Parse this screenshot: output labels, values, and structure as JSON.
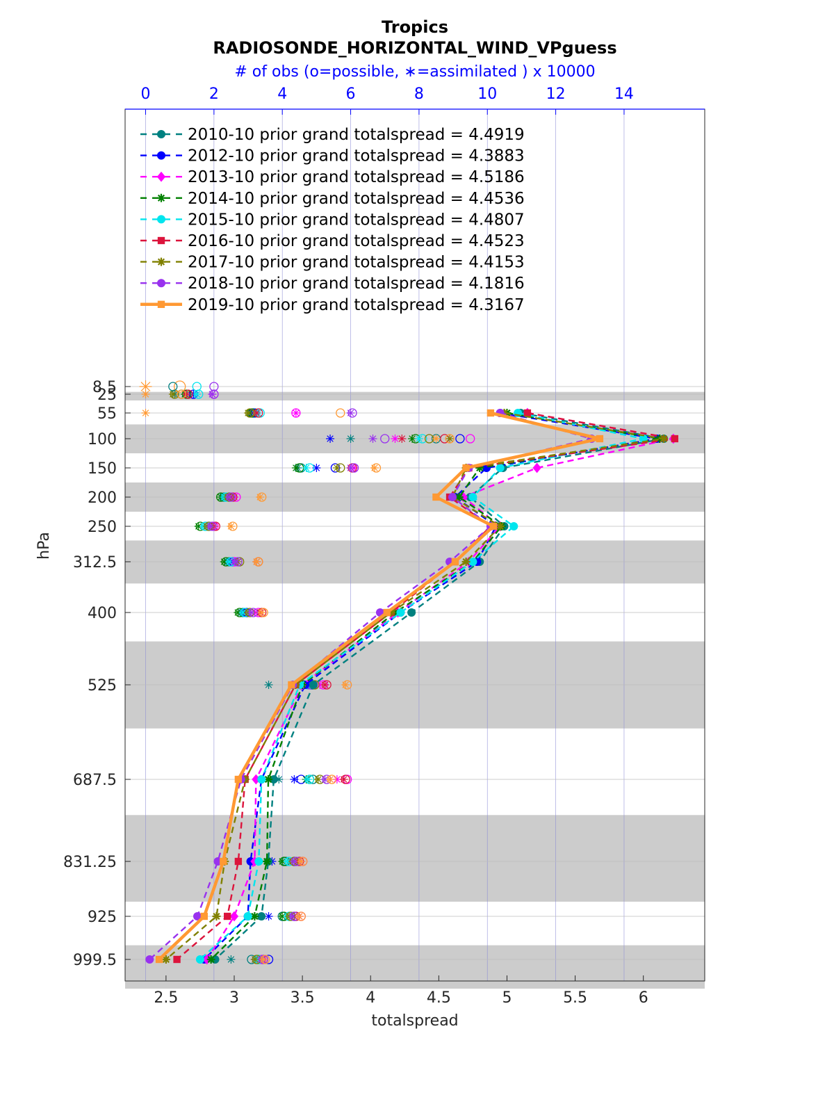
{
  "chart_data": {
    "type": "line",
    "title": "Tropics",
    "subtitle": "RADIOSONDE_HORIZONTAL_WIND_VPguess",
    "top_axis_label": "# of obs (o=possible, ∗=assimilated ) x 10000",
    "xlabel": "totalspread",
    "ylabel": "hPa",
    "xlim": [
      2.2,
      6.45
    ],
    "top_xlim": [
      -0.6,
      16.36
    ],
    "xticks": [
      2.5,
      3,
      3.5,
      4,
      4.5,
      5,
      5.5,
      6
    ],
    "xtick_labels": [
      "2.5",
      "3",
      "3.5",
      "4",
      "4.5",
      "5",
      "5.5",
      "6"
    ],
    "top_xticks": [
      0,
      2,
      4,
      6,
      8,
      10,
      12,
      14
    ],
    "top_xtick_labels": [
      "0",
      "2",
      "4",
      "6",
      "8",
      "10",
      "12",
      "14"
    ],
    "levels": [
      8.5,
      25,
      55,
      100,
      150,
      200,
      250,
      312.5,
      400,
      525,
      687.5,
      831.25,
      925,
      999.5
    ],
    "level_labels": [
      "8.5",
      "25",
      "55",
      "100",
      "150",
      "200",
      "250",
      "312.5",
      "400",
      "525",
      "687.5",
      "831.25",
      "925",
      "999.5"
    ],
    "shaded_bands": [
      [
        20,
        35
      ],
      [
        75,
        125
      ],
      [
        175,
        225
      ],
      [
        275,
        350
      ],
      [
        450,
        600
      ],
      [
        750,
        900
      ],
      [
        975,
        1050
      ]
    ],
    "legend_location": "top-left",
    "series": [
      {
        "name": "2010-10",
        "legend": "2010-10 prior grand totalspread = 4.4919",
        "color": "#008080",
        "marker": "circle",
        "dashed": true,
        "profile_levels": [
          55,
          100,
          150,
          200,
          250,
          312.5,
          400,
          525,
          687.5,
          831.25,
          925,
          999.5
        ],
        "profile_values": [
          5.1,
          6.15,
          4.97,
          4.73,
          4.98,
          4.8,
          4.3,
          3.58,
          3.29,
          3.25,
          3.2,
          2.86
        ],
        "obs_possible": [
          1.05,
          3.2,
          8.5,
          4.55,
          2.3,
          1.75,
          2.45,
          2.85,
          4.9,
          4.9,
          4.1,
          4.0,
          3.1
        ],
        "obs_assim": [
          0.85,
          3.05,
          6.0,
          4.45,
          2.25,
          1.7,
          2.4,
          2.8,
          3.6,
          3.9,
          3.2,
          3.0,
          2.5
        ]
      },
      {
        "name": "2012-10",
        "legend": "2012-10 prior grand totalspread = 4.3883",
        "color": "#0000ff",
        "marker": "circle",
        "dashed": true,
        "profile_levels": [
          55,
          100,
          150,
          200,
          250,
          312.5,
          400,
          525,
          687.5,
          831.25,
          925,
          999.5
        ],
        "profile_values": [
          4.95,
          6.1,
          4.85,
          4.62,
          4.92,
          4.78,
          4.22,
          3.52,
          3.2,
          3.12,
          3.1,
          2.78
        ],
        "obs_possible": [
          1.4,
          3.15,
          9.2,
          5.55,
          2.45,
          1.85,
          2.55,
          2.95,
          4.85,
          4.55,
          4.35,
          4.35,
          3.6
        ],
        "obs_assim": [
          1.4,
          3.1,
          5.4,
          5.0,
          2.4,
          1.8,
          2.5,
          2.9,
          4.3,
          4.35,
          3.7,
          3.6,
          3.2
        ]
      },
      {
        "name": "2013-10",
        "legend": "2013-10 prior grand totalspread = 4.5186",
        "color": "#ff00ff",
        "marker": "diamond",
        "dashed": true,
        "profile_levels": [
          55,
          100,
          150,
          200,
          250,
          312.5,
          400,
          525,
          687.5,
          831.25,
          925,
          999.5
        ],
        "profile_values": [
          5.15,
          6.22,
          5.22,
          4.68,
          4.95,
          4.72,
          4.2,
          3.5,
          3.16,
          3.15,
          3.0,
          2.8
        ],
        "obs_possible": [
          2.0,
          4.4,
          9.5,
          6.1,
          2.65,
          2.0,
          2.6,
          3.3,
          5.2,
          5.9,
          4.6,
          4.55,
          3.4
        ],
        "obs_assim": [
          1.95,
          4.4,
          7.3,
          6.1,
          2.6,
          1.95,
          2.6,
          3.2,
          5.1,
          5.6,
          4.55,
          4.5,
          3.35
        ]
      },
      {
        "name": "2014-10",
        "legend": "2014-10 prior grand totalspread = 4.4536",
        "color": "#008000",
        "marker": "star",
        "dashed": true,
        "profile_levels": [
          55,
          100,
          150,
          200,
          250,
          312.5,
          400,
          525,
          687.5,
          831.25,
          925,
          999.5
        ],
        "profile_values": [
          5.0,
          6.12,
          4.8,
          4.65,
          4.96,
          4.75,
          4.18,
          3.5,
          3.25,
          3.24,
          3.15,
          2.83
        ],
        "obs_possible": [
          1.2,
          3.1,
          7.9,
          4.5,
          2.2,
          1.6,
          2.35,
          2.75,
          4.6,
          4.8,
          4.05,
          4.05,
          3.3
        ],
        "obs_assim": [
          1.15,
          3.05,
          7.8,
          4.4,
          2.2,
          1.55,
          2.3,
          2.7,
          4.5,
          4.7,
          4.0,
          4.0,
          3.25
        ]
      },
      {
        "name": "2015-10",
        "legend": "2015-10 prior grand totalspread = 4.4807",
        "color": "#00e5ee",
        "marker": "circle",
        "dashed": true,
        "profile_levels": [
          55,
          100,
          150,
          200,
          250,
          312.5,
          400,
          525,
          687.5,
          831.25,
          925,
          999.5
        ],
        "profile_values": [
          5.08,
          6.0,
          4.95,
          4.75,
          5.05,
          4.75,
          4.22,
          3.48,
          3.2,
          3.18,
          3.1,
          2.75
        ],
        "obs_possible": [
          1.55,
          3.35,
          8.1,
          4.8,
          2.35,
          1.75,
          2.5,
          2.9,
          4.75,
          4.8,
          4.2,
          4.2,
          3.3
        ],
        "obs_assim": [
          1.5,
          3.3,
          8.0,
          4.7,
          2.3,
          1.7,
          2.45,
          2.85,
          4.7,
          4.75,
          4.15,
          4.15,
          3.25
        ]
      },
      {
        "name": "2016-10",
        "legend": "2016-10 prior grand totalspread = 4.4523",
        "color": "#dc143c",
        "marker": "square",
        "dashed": true,
        "profile_levels": [
          55,
          100,
          150,
          200,
          250,
          312.5,
          400,
          525,
          687.5,
          831.25,
          925,
          999.5
        ],
        "profile_values": [
          5.15,
          6.23,
          4.72,
          4.58,
          4.88,
          4.62,
          4.15,
          3.45,
          3.08,
          3.03,
          2.95,
          2.58
        ],
        "obs_possible": [
          1.25,
          3.3,
          8.75,
          6.05,
          2.55,
          2.05,
          3.3,
          3.4,
          5.3,
          5.85,
          4.5,
          4.4,
          3.45
        ],
        "obs_assim": [
          1.2,
          3.25,
          7.5,
          6.0,
          2.5,
          2.0,
          3.25,
          3.35,
          5.25,
          5.8,
          4.45,
          4.35,
          3.4
        ]
      },
      {
        "name": "2017-10",
        "legend": "2017-10 prior grand totalspread = 4.4153",
        "color": "#808000",
        "marker": "star",
        "dashed": true,
        "profile_levels": [
          55,
          100,
          150,
          200,
          250,
          312.5,
          400,
          525,
          687.5,
          831.25,
          925,
          999.5
        ],
        "profile_values": [
          4.98,
          6.15,
          4.7,
          4.6,
          4.95,
          4.7,
          4.15,
          3.45,
          3.08,
          2.93,
          2.87,
          2.5
        ],
        "obs_possible": [
          0.85,
          3.05,
          8.3,
          5.7,
          2.45,
          1.85,
          2.75,
          3.05,
          4.95,
          5.1,
          4.35,
          4.25,
          3.25
        ],
        "obs_assim": [
          0.8,
          3.0,
          8.9,
          5.6,
          2.4,
          1.8,
          2.7,
          3.0,
          4.9,
          5.05,
          4.3,
          4.2,
          3.2
        ]
      },
      {
        "name": "2018-10",
        "legend": "2018-10 prior grand totalspread = 4.1816",
        "color": "#9932ee",
        "marker": "circle",
        "dashed": true,
        "profile_levels": [
          55,
          100,
          150,
          200,
          250,
          312.5,
          400,
          525,
          687.5,
          831.25,
          925,
          999.5
        ],
        "profile_values": [
          4.95,
          5.62,
          4.72,
          4.6,
          4.88,
          4.58,
          4.07,
          3.43,
          3.05,
          2.88,
          2.73,
          2.38
        ],
        "obs_possible": [
          2.0,
          6.05,
          7.0,
          6.1,
          2.5,
          1.95,
          2.7,
          3.15,
          4.8,
          5.3,
          4.4,
          4.35,
          3.45
        ],
        "obs_assim": [
          1.95,
          6.0,
          6.65,
          6.0,
          2.45,
          1.9,
          2.65,
          3.1,
          4.75,
          5.25,
          4.35,
          4.3,
          3.4
        ]
      },
      {
        "name": "2019-10",
        "legend": "2019-10 prior grand totalspread = 4.3167",
        "color": "#ff9933",
        "marker": "square",
        "dashed": false,
        "profile_levels": [
          55,
          100,
          150,
          200,
          250,
          312.5,
          400,
          525,
          687.5,
          831.25,
          925,
          999.5
        ],
        "profile_values": [
          4.88,
          5.68,
          4.7,
          4.48,
          4.9,
          4.62,
          4.12,
          3.42,
          3.03,
          2.92,
          2.78,
          2.45
        ],
        "obs_possible": [
          1.05,
          5.7,
          8.9,
          6.75,
          3.4,
          2.55,
          3.3,
          3.45,
          5.9,
          5.45,
          4.6,
          4.55,
          3.5
        ],
        "obs_assim": [
          0.0,
          0.0,
          8.5,
          6.7,
          3.35,
          2.5,
          3.25,
          3.4,
          5.85,
          5.4,
          4.55,
          4.5,
          3.45
        ]
      }
    ]
  }
}
